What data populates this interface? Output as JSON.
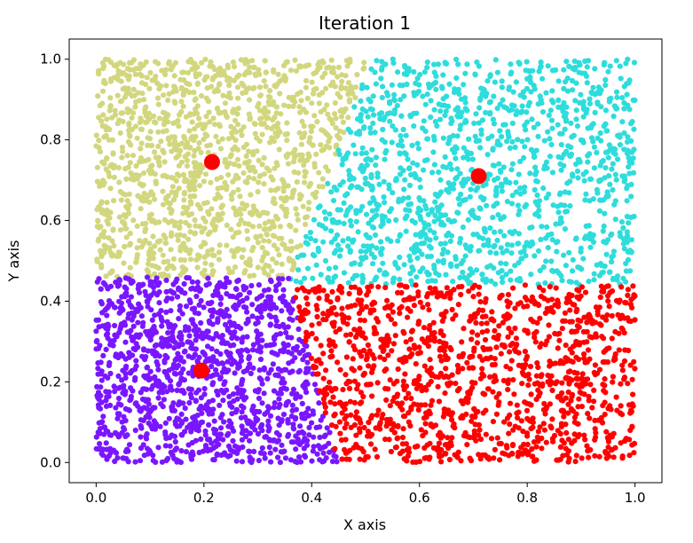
{
  "chart_data": {
    "type": "scatter",
    "title": "Iteration 1",
    "xlabel": "X axis",
    "ylabel": "Y axis",
    "xlim": [
      -0.05,
      1.05
    ],
    "ylim": [
      -0.05,
      1.05
    ],
    "xticks": [
      0.0,
      0.2,
      0.4,
      0.6,
      0.8,
      1.0
    ],
    "yticks": [
      0.0,
      0.2,
      0.4,
      0.6,
      0.8,
      1.0
    ],
    "xtick_labels": [
      "0.0",
      "0.2",
      "0.4",
      "0.6",
      "0.8",
      "1.0"
    ],
    "ytick_labels": [
      "0.0",
      "0.2",
      "0.4",
      "0.6",
      "0.8",
      "1.0"
    ],
    "grid": false,
    "legend": "none",
    "clusters": [
      {
        "color": "#d2d77f",
        "region": "upper-left",
        "x_range": [
          0.0,
          0.51
        ],
        "y_range": [
          0.46,
          1.0
        ],
        "boundary": [
          [
            0.36,
            0.46
          ],
          [
            0.51,
            1.0
          ]
        ]
      },
      {
        "color": "#2fdcdc",
        "region": "upper-right",
        "x_range": [
          0.36,
          1.0
        ],
        "y_range": [
          0.44,
          1.0
        ],
        "boundary": [
          [
            0.36,
            0.46
          ],
          [
            0.51,
            1.0
          ]
        ]
      },
      {
        "color": "#7a16ff",
        "region": "lower-left",
        "x_range": [
          0.0,
          0.45
        ],
        "y_range": [
          0.0,
          0.46
        ],
        "boundary": [
          [
            0.36,
            0.44
          ],
          [
            0.45,
            0.0
          ]
        ]
      },
      {
        "color": "#ff0000",
        "region": "lower-right",
        "x_range": [
          0.36,
          1.0
        ],
        "y_range": [
          0.0,
          0.44
        ],
        "boundary": [
          [
            0.36,
            0.44
          ],
          [
            0.45,
            0.0
          ]
        ]
      }
    ],
    "centroids": {
      "color": "#ff0000",
      "points": [
        {
          "x": 0.215,
          "y": 0.745
        },
        {
          "x": 0.71,
          "y": 0.71
        },
        {
          "x": 0.195,
          "y": 0.228
        }
      ]
    }
  }
}
